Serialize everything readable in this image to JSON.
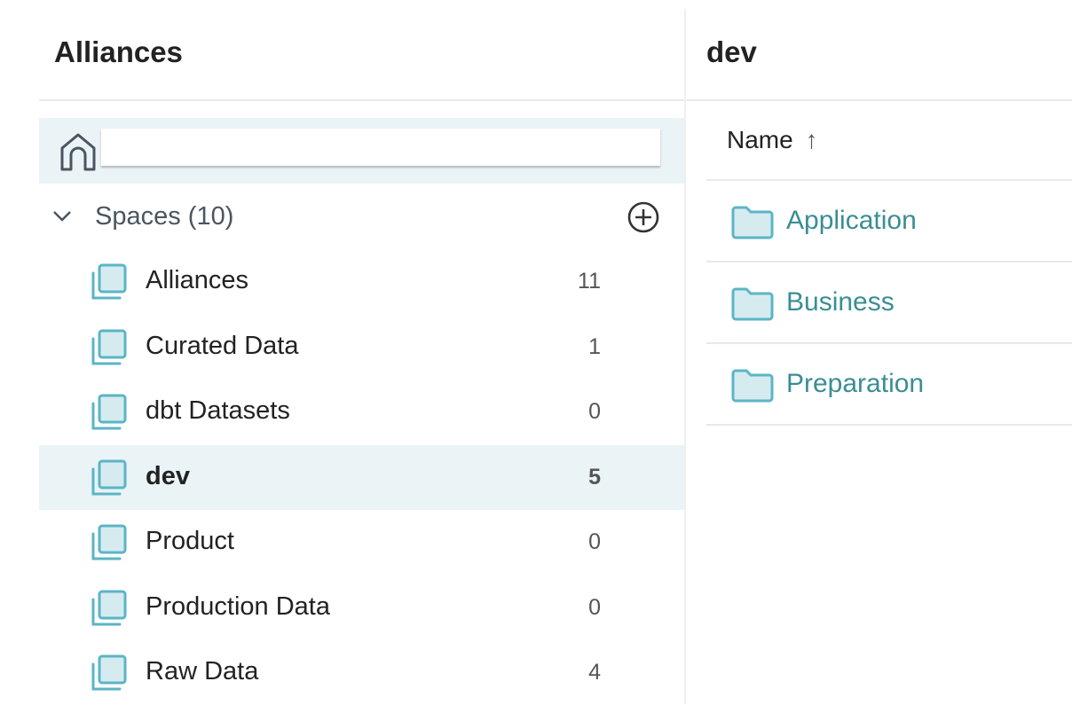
{
  "left_panel": {
    "title": "Alliances",
    "spaces": {
      "label": "Spaces (10)",
      "items": [
        {
          "name": "Alliances",
          "count": "11"
        },
        {
          "name": "Curated Data",
          "count": "1"
        },
        {
          "name": "dbt Datasets",
          "count": "0"
        },
        {
          "name": "dev",
          "count": "5",
          "selected": true
        },
        {
          "name": "Product",
          "count": "0"
        },
        {
          "name": "Production Data",
          "count": "0"
        },
        {
          "name": "Raw Data",
          "count": "4"
        }
      ]
    }
  },
  "right_panel": {
    "title": "dev",
    "column_header": "Name",
    "sort_icon": "arrow-up-icon",
    "rows": [
      {
        "name": "Application"
      },
      {
        "name": "Business"
      },
      {
        "name": "Preparation"
      }
    ]
  },
  "colors": {
    "accent": "#3a8e94",
    "selected_bg": "#eaf3f6",
    "icon": "#5bb5c5"
  }
}
